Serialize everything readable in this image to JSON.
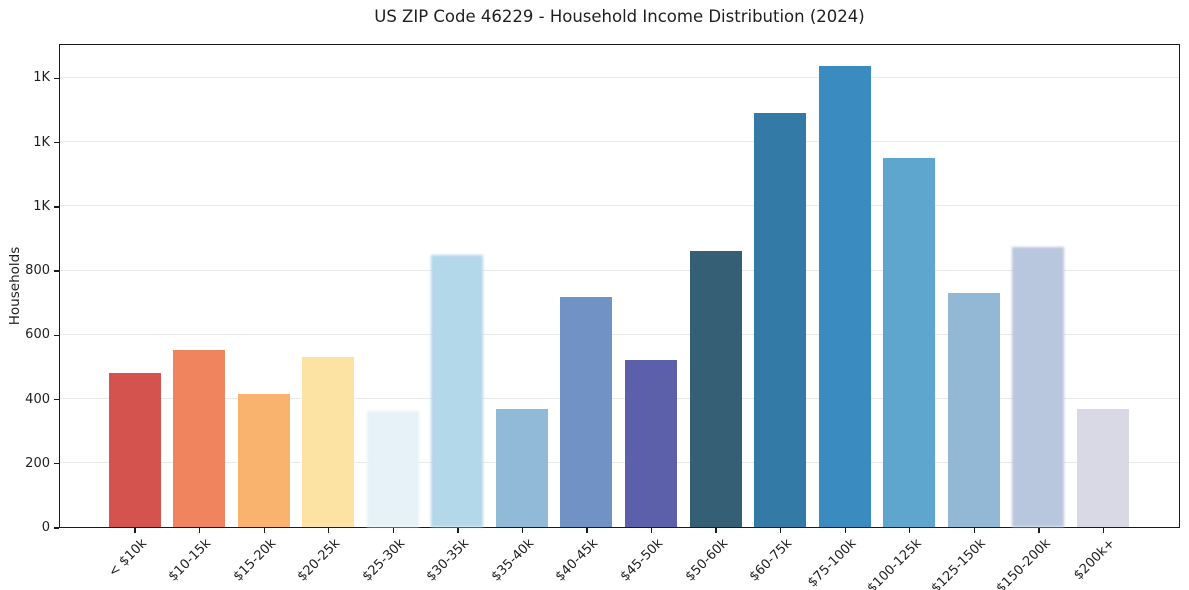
{
  "title": "US ZIP Code 46229 - Household Income Distribution (2024)",
  "chart_data": {
    "type": "bar",
    "title": "US ZIP Code 46229 - Household Income Distribution (2024)",
    "xlabel": "",
    "ylabel": "Households",
    "categories": [
      "< $10k",
      "$10-15k",
      "$15-20k",
      "$20-25k",
      "$25-30k",
      "$30-35k",
      "$35-40k",
      "$40-45k",
      "$45-50k",
      "$50-60k",
      "$60-75k",
      "$75-100k",
      "$100-125k",
      "$125-150k",
      "$150-200k",
      "$200k+"
    ],
    "values": [
      480,
      552,
      415,
      530,
      362,
      848,
      366,
      717,
      520,
      860,
      1290,
      1435,
      1150,
      728,
      871,
      366
    ],
    "bar_colors": [
      "#d4534e",
      "#f0845f",
      "#f9b36e",
      "#fce3a3",
      "#e6f2f7",
      "#b2d8e9",
      "#90bad8",
      "#7092c5",
      "#5c5fa9",
      "#355f75",
      "#337aa6",
      "#3a8bc0",
      "#5ea6cd",
      "#93b8d6",
      "#b8c6de",
      "#d9d9e5"
    ],
    "ylim": [
      0,
      1507
    ],
    "ytick_values": [
      0,
      200,
      400,
      600,
      800,
      1000,
      1200,
      1400
    ],
    "ytick_labels": [
      "0",
      "200",
      "400",
      "600",
      "800",
      "1K",
      "1K",
      "1K"
    ],
    "grid": "horizontal",
    "legend": "none",
    "soft_edge_bar_indices": [
      4,
      5,
      14
    ],
    "colors": {
      "gridline": "#e9e9e9",
      "spine": "#1b1b1b",
      "text": "#1f1f1f",
      "background": "#ffffff"
    }
  }
}
